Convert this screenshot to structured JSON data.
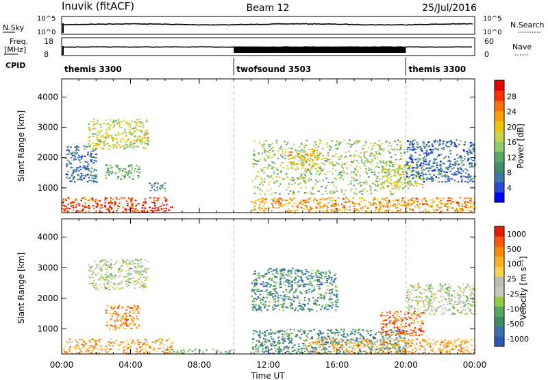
{
  "header": {
    "station": "Inuvik (fitACF)",
    "beam": "Beam 12",
    "date": "25/Jul/2016"
  },
  "params": {
    "nsky_label": "N.Sky",
    "nsky_ticks": [
      "10^5",
      "10^0"
    ],
    "nsearch_label": "N.Search",
    "nsearch_ticks": [
      "10^5",
      "10^0"
    ],
    "freq_label_1": "Freq.",
    "freq_label_2": "[MHz]",
    "freq_ticks": [
      "18",
      "8"
    ],
    "nave_label": "Nave",
    "nave_ticks": [
      "60",
      "0"
    ],
    "cpid_label": "CPID"
  },
  "cpid_segments": [
    {
      "name": "themis 3300",
      "start_h": 0,
      "end_h": 10
    },
    {
      "name": "twofsound 3503",
      "start_h": 10,
      "end_h": 20
    },
    {
      "name": "themis 3300",
      "start_h": 20,
      "end_h": 24
    }
  ],
  "chart_data": [
    {
      "type": "heatmap",
      "quantity": "power",
      "ylabel": "Slant Range [km]",
      "ylim": [
        180,
        4600
      ],
      "xlim": [
        0,
        24
      ],
      "y_ticks": [
        1000,
        2000,
        3000,
        4000
      ],
      "colorbar_label": "Power [dB]",
      "colorbar_ticks": [
        "4",
        "8",
        "12",
        "16",
        "20",
        "24",
        "28"
      ],
      "colorbar_colors": [
        "#0000ff",
        "#2a4bd7",
        "#3a7aa8",
        "#3f8f6a",
        "#5aa96a",
        "#8fcc6b",
        "#c8d84a",
        "#f0c400",
        "#ffa000",
        "#ff7000",
        "#ff3000",
        "#e80000"
      ],
      "regions": [
        {
          "t0": 0,
          "t1": 6.4,
          "r0": 200,
          "r1": 700,
          "level": 10
        },
        {
          "t0": 0.2,
          "t1": 2.0,
          "r0": 1200,
          "r1": 2400,
          "level": 2
        },
        {
          "t0": 1.5,
          "t1": 5.0,
          "r0": 2300,
          "r1": 3300,
          "level": 6
        },
        {
          "t0": 2.5,
          "t1": 4.5,
          "r0": 1300,
          "r1": 1800,
          "level": 4
        },
        {
          "t0": 5.0,
          "t1": 6.0,
          "r0": 900,
          "r1": 1200,
          "level": 3
        },
        {
          "t0": 11.0,
          "t1": 24.0,
          "r0": 200,
          "r1": 700,
          "level": 8
        },
        {
          "t0": 11.0,
          "t1": 20.0,
          "r0": 800,
          "r1": 2600,
          "level": 5
        },
        {
          "t0": 13.0,
          "t1": 15.0,
          "r0": 1600,
          "r1": 2300,
          "level": 7
        },
        {
          "t0": 18.5,
          "t1": 21.0,
          "r0": 1000,
          "r1": 1800,
          "level": 6
        },
        {
          "t0": 20.0,
          "t1": 24.0,
          "r0": 1200,
          "r1": 2600,
          "level": 2
        }
      ]
    },
    {
      "type": "heatmap",
      "quantity": "velocity",
      "xlabel": "Time UT",
      "ylabel": "Slant Range [km]",
      "ylim": [
        180,
        4600
      ],
      "xlim": [
        0,
        24
      ],
      "y_ticks": [
        1000,
        2000,
        3000,
        4000
      ],
      "x_ticks": [
        "00:00",
        "04:00",
        "08:00",
        "12:00",
        "16:00",
        "20:00",
        "00:00"
      ],
      "colorbar_label": "Velocity [m s⁻¹]",
      "colorbar_ticks": [
        "1000",
        "500",
        "100",
        "25",
        "-25",
        "-100",
        "-500",
        "-1000"
      ],
      "colorbar_colors": [
        "#2b59b8",
        "#3a6fb0",
        "#3a8f6a",
        "#56a85c",
        "#8fce3f",
        "#c8c8c0",
        "#bdbdb5",
        "#ffd24d",
        "#ffb020",
        "#ff8a00",
        "#ff5a00",
        "#e81e00"
      ],
      "regions": [
        {
          "t0": 0,
          "t1": 6.4,
          "r0": 200,
          "r1": 700,
          "level": 8
        },
        {
          "t0": 1.5,
          "t1": 5.0,
          "r0": 2300,
          "r1": 3300,
          "level": 5
        },
        {
          "t0": 2.5,
          "t1": 4.5,
          "r0": 1000,
          "r1": 1800,
          "level": 9
        },
        {
          "t0": 6.0,
          "t1": 10.0,
          "r0": 200,
          "r1": 350,
          "level": 4
        },
        {
          "t0": 11.0,
          "t1": 20.0,
          "r0": 200,
          "r1": 1000,
          "level": 2
        },
        {
          "t0": 11.0,
          "t1": 16.0,
          "r0": 1600,
          "r1": 3000,
          "level": 2
        },
        {
          "t0": 14.0,
          "t1": 24.0,
          "r0": 200,
          "r1": 700,
          "level": 8
        },
        {
          "t0": 18.5,
          "t1": 21.0,
          "r0": 800,
          "r1": 1600,
          "level": 10
        },
        {
          "t0": 20.0,
          "t1": 24.0,
          "r0": 1500,
          "r1": 2500,
          "level": 5
        }
      ]
    }
  ]
}
